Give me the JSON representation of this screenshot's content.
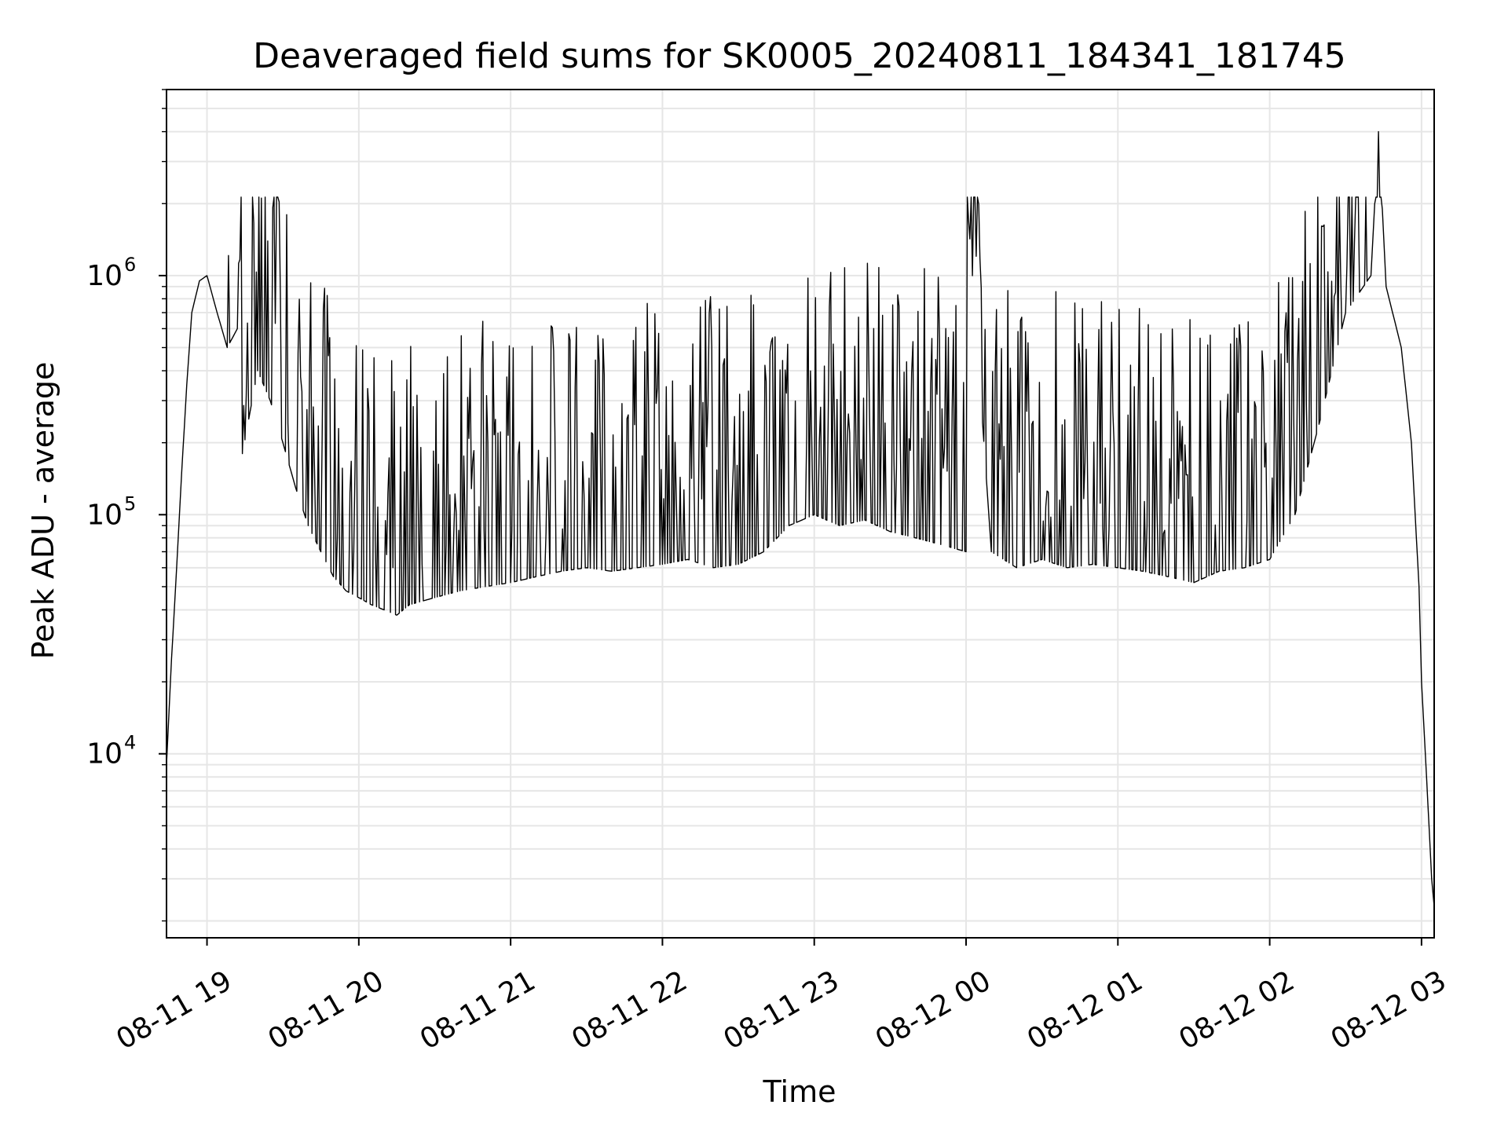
{
  "chart_data": {
    "type": "line",
    "title": "Deaveraged field sums for SK0005_20240811_184341_181745",
    "xlabel": "Time",
    "ylabel": "Peak ADU - average",
    "yscale": "log",
    "grid": true,
    "ylim": [
      1700,
      6000000
    ],
    "xlim": [
      "2024-08-11 18:44",
      "2024-08-12 03:05"
    ],
    "x_ticks": [
      {
        "label": "08-11 19",
        "time": "2024-08-11 19:00"
      },
      {
        "label": "08-11 20",
        "time": "2024-08-11 20:00"
      },
      {
        "label": "08-11 21",
        "time": "2024-08-11 21:00"
      },
      {
        "label": "08-11 22",
        "time": "2024-08-11 22:00"
      },
      {
        "label": "08-11 23",
        "time": "2024-08-11 23:00"
      },
      {
        "label": "08-12 00",
        "time": "2024-08-12 00:00"
      },
      {
        "label": "08-12 01",
        "time": "2024-08-12 01:00"
      },
      {
        "label": "08-12 02",
        "time": "2024-08-12 02:00"
      },
      {
        "label": "08-12 03",
        "time": "2024-08-12 03:00"
      }
    ],
    "y_ticks": [
      {
        "base": "10",
        "exp": "4",
        "value": 10000
      },
      {
        "base": "10",
        "exp": "5",
        "value": 100000
      },
      {
        "base": "10",
        "exp": "6",
        "value": 1000000
      }
    ],
    "series": [
      {
        "color": "#000000",
        "points": [
          [
            "2024-08-11 18:44",
            9000
          ],
          [
            "2024-08-11 18:46",
            25000
          ],
          [
            "2024-08-11 18:48",
            60000
          ],
          [
            "2024-08-11 18:50",
            150000
          ],
          [
            "2024-08-11 18:52",
            350000
          ],
          [
            "2024-08-11 18:54",
            700000
          ],
          [
            "2024-08-11 18:57",
            950000
          ],
          [
            "2024-08-11 19:00",
            1000000
          ],
          [
            "2024-08-11 19:04",
            700000
          ],
          [
            "2024-08-11 19:08",
            500000
          ],
          [
            "2024-08-11 19:12",
            600000
          ],
          [
            "2024-08-11 19:14",
            180000
          ],
          [
            "2024-08-11 19:20",
            400000
          ],
          [
            "2024-08-11 19:25",
            300000
          ],
          [
            "2024-08-11 19:30",
            200000
          ],
          [
            "2024-08-11 19:35",
            130000
          ],
          [
            "2024-08-11 19:40",
            90000
          ],
          [
            "2024-08-11 19:45",
            70000
          ],
          [
            "2024-08-11 19:50",
            55000
          ],
          [
            "2024-08-11 19:55",
            48000
          ],
          [
            "2024-08-11 20:00",
            45000
          ],
          [
            "2024-08-11 20:05",
            42000
          ],
          [
            "2024-08-11 20:10",
            40000
          ],
          [
            "2024-08-11 20:15",
            38000
          ],
          [
            "2024-08-11 20:20",
            42000
          ],
          [
            "2024-08-11 20:30",
            45000
          ],
          [
            "2024-08-11 20:40",
            48000
          ],
          [
            "2024-08-11 20:50",
            50000
          ],
          [
            "2024-08-11 21:00",
            52000
          ],
          [
            "2024-08-11 21:10",
            55000
          ],
          [
            "2024-08-11 21:20",
            58000
          ],
          [
            "2024-08-11 21:30",
            60000
          ],
          [
            "2024-08-11 21:40",
            58000
          ],
          [
            "2024-08-11 21:50",
            60000
          ],
          [
            "2024-08-11 22:00",
            62000
          ],
          [
            "2024-08-11 22:10",
            65000
          ],
          [
            "2024-08-11 22:20",
            60000
          ],
          [
            "2024-08-11 22:30",
            62000
          ],
          [
            "2024-08-11 22:40",
            70000
          ],
          [
            "2024-08-11 22:50",
            90000
          ],
          [
            "2024-08-11 23:00",
            100000
          ],
          [
            "2024-08-11 23:10",
            90000
          ],
          [
            "2024-08-11 23:20",
            95000
          ],
          [
            "2024-08-11 23:30",
            85000
          ],
          [
            "2024-08-11 23:40",
            80000
          ],
          [
            "2024-08-11 23:50",
            75000
          ],
          [
            "2024-08-12 00:00",
            70000
          ],
          [
            "2024-08-12 00:01",
            1700000
          ],
          [
            "2024-08-12 00:10",
            70000
          ],
          [
            "2024-08-12 00:20",
            60000
          ],
          [
            "2024-08-12 00:30",
            65000
          ],
          [
            "2024-08-12 00:40",
            60000
          ],
          [
            "2024-08-12 00:50",
            62000
          ],
          [
            "2024-08-12 01:00",
            60000
          ],
          [
            "2024-08-12 01:10",
            58000
          ],
          [
            "2024-08-12 01:20",
            55000
          ],
          [
            "2024-08-12 01:30",
            52000
          ],
          [
            "2024-08-12 01:40",
            58000
          ],
          [
            "2024-08-12 01:50",
            60000
          ],
          [
            "2024-08-12 02:00",
            65000
          ],
          [
            "2024-08-12 02:10",
            100000
          ],
          [
            "2024-08-12 02:20",
            250000
          ],
          [
            "2024-08-12 02:30",
            700000
          ],
          [
            "2024-08-12 02:40",
            1000000
          ],
          [
            "2024-08-12 02:43",
            4000000
          ],
          [
            "2024-08-12 02:46",
            900000
          ],
          [
            "2024-08-12 02:52",
            500000
          ],
          [
            "2024-08-12 02:56",
            200000
          ],
          [
            "2024-08-12 02:59",
            50000
          ],
          [
            "2024-08-12 03:00",
            20000
          ],
          [
            "2024-08-12 03:02",
            8000
          ],
          [
            "2024-08-12 03:04",
            3000
          ],
          [
            "2024-08-12 03:05",
            2300
          ]
        ]
      }
    ]
  }
}
